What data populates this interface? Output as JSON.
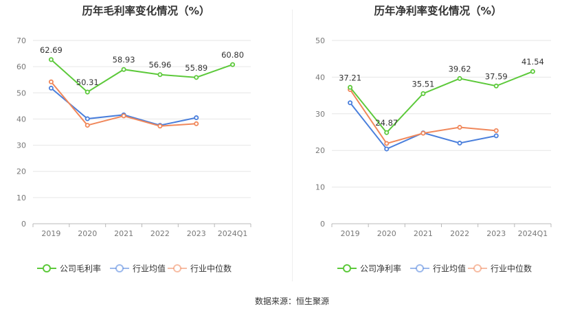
{
  "source_text": "数据来源：恒生聚源",
  "chart_data": [
    {
      "type": "line",
      "title": "历年毛利率变化情况（%）",
      "categories": [
        "2019",
        "2020",
        "2021",
        "2022",
        "2023",
        "2024Q1"
      ],
      "ylim": [
        0,
        70
      ],
      "yticks": [
        0,
        10,
        20,
        30,
        40,
        50,
        60,
        70
      ],
      "grid": true,
      "legend_position": "bottom",
      "series": [
        {
          "name": "公司毛利率",
          "color": "#5cc93a",
          "values": [
            62.69,
            50.31,
            58.93,
            56.96,
            55.89,
            60.8
          ],
          "labels": [
            "62.69",
            "50.31",
            "58.93",
            "56.96",
            "55.89",
            "60.80"
          ]
        },
        {
          "name": "行业均值",
          "color": "#4a7fdc",
          "values": [
            51.8,
            40.1,
            41.6,
            37.6,
            40.5,
            null
          ]
        },
        {
          "name": "行业中位数",
          "color": "#f0875a",
          "values": [
            54.2,
            37.6,
            41.2,
            37.3,
            38.2,
            null
          ]
        }
      ]
    },
    {
      "type": "line",
      "title": "历年净利率变化情况（%）",
      "categories": [
        "2019",
        "2020",
        "2021",
        "2022",
        "2023",
        "2024Q1"
      ],
      "ylim": [
        0,
        50
      ],
      "yticks": [
        0,
        10,
        20,
        30,
        40,
        50
      ],
      "grid": true,
      "legend_position": "bottom",
      "series": [
        {
          "name": "公司净利率",
          "color": "#5cc93a",
          "values": [
            37.21,
            24.87,
            35.51,
            39.62,
            37.59,
            41.54
          ],
          "labels": [
            "37.21",
            "24.87",
            "35.51",
            "39.62",
            "37.59",
            "41.54"
          ]
        },
        {
          "name": "行业均值",
          "color": "#4a7fdc",
          "values": [
            33.0,
            20.4,
            24.8,
            22.0,
            24.0,
            null
          ]
        },
        {
          "name": "行业中位数",
          "color": "#f0875a",
          "values": [
            36.6,
            21.9,
            24.7,
            26.3,
            25.4,
            null
          ]
        }
      ]
    }
  ]
}
